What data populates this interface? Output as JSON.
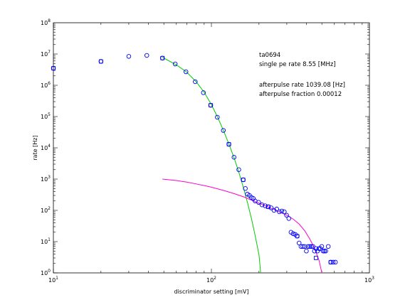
{
  "chart_data": {
    "type": "scatter",
    "title": "",
    "xlabel": "discriminator setting [mV]",
    "ylabel": "rate [Hz]",
    "xscale": "log",
    "yscale": "log",
    "xlim": [
      10,
      1000
    ],
    "ylim": [
      1,
      100000000
    ],
    "grid": false,
    "x_ticks": [
      {
        "base": "10",
        "exp": "1",
        "value": 10
      },
      {
        "base": "10",
        "exp": "2",
        "value": 100
      },
      {
        "base": "10",
        "exp": "3",
        "value": 1000
      }
    ],
    "y_ticks": [
      {
        "base": "10",
        "exp": "0",
        "value": 1
      },
      {
        "base": "10",
        "exp": "1",
        "value": 10
      },
      {
        "base": "10",
        "exp": "2",
        "value": 100
      },
      {
        "base": "10",
        "exp": "3",
        "value": 1000
      },
      {
        "base": "10",
        "exp": "4",
        "value": 10000
      },
      {
        "base": "10",
        "exp": "5",
        "value": 100000
      },
      {
        "base": "10",
        "exp": "6",
        "value": 1000000
      },
      {
        "base": "10",
        "exp": "7",
        "value": 10000000
      },
      {
        "base": "10",
        "exp": "8",
        "value": 100000000
      }
    ],
    "annotations": [
      "ta0694",
      "single pe rate 8.55 [MHz]",
      "afterpulse rate 1039.08 [Hz]",
      "afterpulse fraction 0.00012"
    ],
    "series": [
      {
        "marker": "circle",
        "color": "#0000ff",
        "points": [
          [
            10,
            3500000
          ],
          [
            20,
            5800000
          ],
          [
            30,
            8400000
          ],
          [
            39,
            9000000
          ],
          [
            49,
            7400000
          ],
          [
            59,
            4800000
          ],
          [
            69,
            2700000
          ],
          [
            79,
            1300000
          ],
          [
            89,
            580000
          ],
          [
            99,
            230000
          ],
          [
            109,
            95000
          ],
          [
            119,
            36000
          ],
          [
            129,
            13000
          ],
          [
            139,
            5000
          ],
          [
            149,
            2000
          ],
          [
            159,
            950
          ],
          [
            164,
            500
          ],
          [
            169,
            330
          ],
          [
            174,
            300
          ],
          [
            179,
            260
          ],
          [
            184,
            240
          ],
          [
            189,
            200
          ],
          [
            199,
            180
          ],
          [
            209,
            150
          ],
          [
            219,
            140
          ],
          [
            229,
            130
          ],
          [
            239,
            120
          ],
          [
            249,
            100
          ],
          [
            259,
            110
          ],
          [
            269,
            90
          ],
          [
            279,
            95
          ],
          [
            289,
            90
          ],
          [
            299,
            70
          ],
          [
            309,
            55
          ],
          [
            319,
            20
          ],
          [
            329,
            18
          ],
          [
            339,
            17
          ],
          [
            349,
            15
          ],
          [
            359,
            9
          ],
          [
            369,
            7
          ],
          [
            379,
            7
          ],
          [
            389,
            7
          ],
          [
            399,
            5
          ],
          [
            409,
            7
          ],
          [
            419,
            7
          ],
          [
            429,
            7
          ],
          [
            439,
            7
          ],
          [
            449,
            5
          ],
          [
            459,
            6
          ],
          [
            469,
            5
          ],
          [
            479,
            6
          ],
          [
            489,
            6
          ],
          [
            499,
            7
          ],
          [
            509,
            5
          ],
          [
            519,
            5
          ],
          [
            529,
            5
          ],
          [
            549,
            7
          ],
          [
            569,
            2.2
          ],
          [
            589,
            2.2
          ],
          [
            609,
            2.2
          ]
        ]
      },
      {
        "marker": "square",
        "color": "#0000ff",
        "points": [
          [
            10,
            3500000
          ],
          [
            20,
            5800000
          ],
          [
            49,
            7400000
          ],
          [
            99,
            230000
          ],
          [
            129,
            13000
          ],
          [
            159,
            950
          ],
          [
            229,
            130
          ],
          [
            349,
            15
          ],
          [
            459,
            3
          ],
          [
            569,
            2.2
          ]
        ]
      },
      {
        "marker": "line",
        "color": "#00cc00",
        "points": [
          [
            49,
            7800000
          ],
          [
            60,
            4500000
          ],
          [
            70,
            2600000
          ],
          [
            80,
            1300000
          ],
          [
            90,
            600000
          ],
          [
            100,
            240000
          ],
          [
            110,
            90000
          ],
          [
            120,
            33000
          ],
          [
            130,
            12000
          ],
          [
            140,
            4400
          ],
          [
            150,
            1500
          ],
          [
            160,
            500
          ],
          [
            170,
            160
          ],
          [
            180,
            50
          ],
          [
            190,
            14
          ],
          [
            200,
            3.8
          ],
          [
            205,
            1.0
          ]
        ]
      },
      {
        "marker": "line",
        "color": "#ff00cc",
        "points": [
          [
            49,
            1000
          ],
          [
            60,
            900
          ],
          [
            70,
            800
          ],
          [
            80,
            700
          ],
          [
            90,
            620
          ],
          [
            100,
            550
          ],
          [
            120,
            430
          ],
          [
            140,
            340
          ],
          [
            160,
            270
          ],
          [
            180,
            210
          ],
          [
            200,
            170
          ],
          [
            220,
            140
          ],
          [
            250,
            105
          ],
          [
            280,
            82
          ],
          [
            300,
            70
          ],
          [
            330,
            52
          ],
          [
            360,
            36
          ],
          [
            390,
            22
          ],
          [
            420,
            12
          ],
          [
            450,
            6
          ],
          [
            480,
            2.5
          ],
          [
            500,
            1.0
          ]
        ]
      }
    ]
  }
}
